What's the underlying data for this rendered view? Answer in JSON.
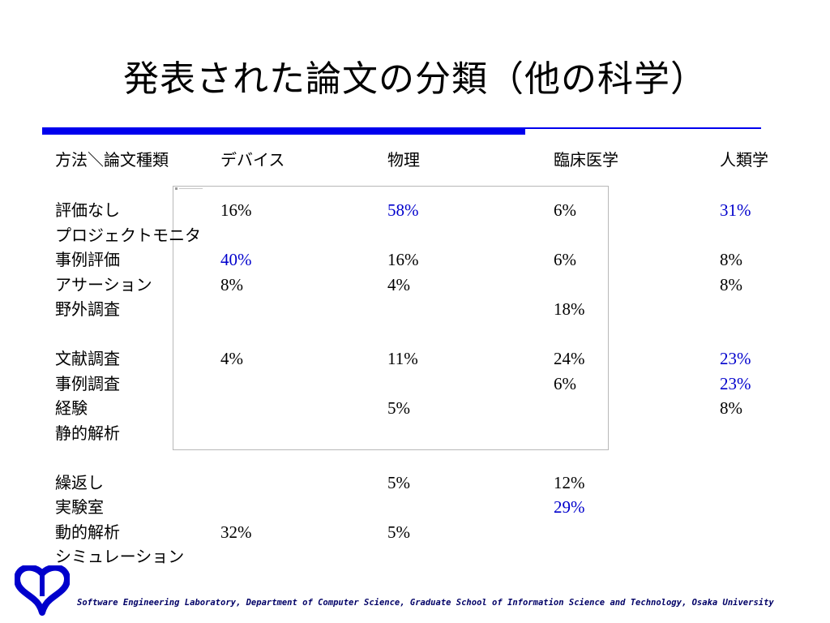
{
  "slide": {
    "title": "発表された論文の分類（他の科学）",
    "footer": "Software Engineering Laboratory, Department of Computer Science, Graduate School of Information Science and Technology, Osaka University"
  },
  "table": {
    "header": [
      "方法＼論文種類",
      "デバイス",
      "物理",
      "臨床医学",
      "人類学"
    ],
    "rows": [
      {
        "label": "評価なし",
        "cells": [
          {
            "v": "16%",
            "hl": false
          },
          {
            "v": "58%",
            "hl": true
          },
          {
            "v": "6%",
            "hl": false
          },
          {
            "v": "31%",
            "hl": true
          }
        ]
      },
      {
        "label": "プロジェクトモニタ",
        "cells": [
          {
            "v": "",
            "hl": false
          },
          {
            "v": "",
            "hl": false
          },
          {
            "v": "",
            "hl": false
          },
          {
            "v": "",
            "hl": false
          }
        ]
      },
      {
        "label": "事例評価",
        "cells": [
          {
            "v": "40%",
            "hl": true
          },
          {
            "v": "16%",
            "hl": false
          },
          {
            "v": "6%",
            "hl": false
          },
          {
            "v": "8%",
            "hl": false
          }
        ]
      },
      {
        "label": "アサーション",
        "cells": [
          {
            "v": "8%",
            "hl": false
          },
          {
            "v": "4%",
            "hl": false
          },
          {
            "v": "",
            "hl": false
          },
          {
            "v": "8%",
            "hl": false
          }
        ]
      },
      {
        "label": "野外調査",
        "cells": [
          {
            "v": "",
            "hl": false
          },
          {
            "v": "",
            "hl": false
          },
          {
            "v": "18%",
            "hl": false
          },
          {
            "v": "",
            "hl": false
          }
        ]
      },
      {
        "label": "",
        "cells": [
          {
            "v": "",
            "hl": false
          },
          {
            "v": "",
            "hl": false
          },
          {
            "v": "",
            "hl": false
          },
          {
            "v": "",
            "hl": false
          }
        ]
      },
      {
        "label": "文献調査",
        "cells": [
          {
            "v": "4%",
            "hl": false
          },
          {
            "v": "11%",
            "hl": false
          },
          {
            "v": "24%",
            "hl": false
          },
          {
            "v": "23%",
            "hl": true
          }
        ]
      },
      {
        "label": "事例調査",
        "cells": [
          {
            "v": "",
            "hl": false
          },
          {
            "v": "",
            "hl": false
          },
          {
            "v": "6%",
            "hl": false
          },
          {
            "v": "23%",
            "hl": true
          }
        ]
      },
      {
        "label": "経験",
        "cells": [
          {
            "v": "",
            "hl": false
          },
          {
            "v": "5%",
            "hl": false
          },
          {
            "v": "",
            "hl": false
          },
          {
            "v": "8%",
            "hl": false
          }
        ]
      },
      {
        "label": "静的解析",
        "cells": [
          {
            "v": "",
            "hl": false
          },
          {
            "v": "",
            "hl": false
          },
          {
            "v": "",
            "hl": false
          },
          {
            "v": "",
            "hl": false
          }
        ]
      },
      {
        "label": "",
        "cells": [
          {
            "v": "",
            "hl": false
          },
          {
            "v": "",
            "hl": false
          },
          {
            "v": "",
            "hl": false
          },
          {
            "v": "",
            "hl": false
          }
        ]
      },
      {
        "label": "繰返し",
        "cells": [
          {
            "v": "",
            "hl": false
          },
          {
            "v": "5%",
            "hl": false
          },
          {
            "v": "12%",
            "hl": false
          },
          {
            "v": "",
            "hl": false
          }
        ]
      },
      {
        "label": "実験室",
        "cells": [
          {
            "v": "",
            "hl": false
          },
          {
            "v": "",
            "hl": false
          },
          {
            "v": "29%",
            "hl": true
          },
          {
            "v": "",
            "hl": false
          }
        ]
      },
      {
        "label": "動的解析",
        "cells": [
          {
            "v": "32%",
            "hl": false
          },
          {
            "v": "5%",
            "hl": false
          },
          {
            "v": "",
            "hl": false
          },
          {
            "v": "",
            "hl": false
          }
        ]
      },
      {
        "label": "シミュレーション",
        "cells": [
          {
            "v": "",
            "hl": false
          },
          {
            "v": "",
            "hl": false
          },
          {
            "v": "",
            "hl": false
          },
          {
            "v": "",
            "hl": false
          }
        ]
      }
    ]
  },
  "colors": {
    "accent": "#0000ee",
    "highlight": "#0000cc",
    "footer": "#000066"
  },
  "icons": {
    "logo": "osaka-university-logo"
  }
}
